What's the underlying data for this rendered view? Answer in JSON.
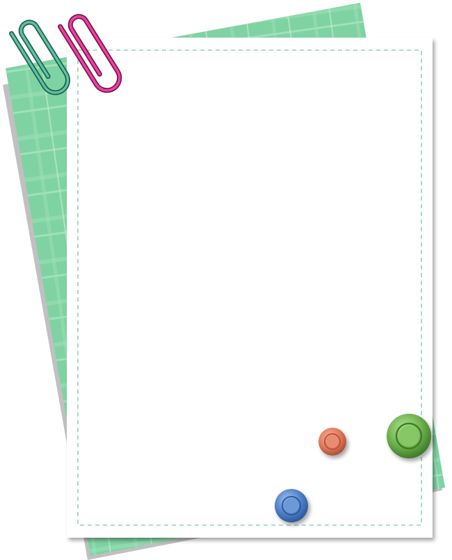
{
  "scene": {
    "colors": {
      "background": "#ffffff",
      "green_paper": "#7fd3a2",
      "green_paper_light": "#a6e2bd",
      "paper_shadow": "#9a9a9a",
      "note_paper": "#ffffff",
      "dashed_border": "#8fd3b4",
      "clip_green": "#2f8f74",
      "clip_pink": "#e8158d",
      "pin_orange": "#e27b5f",
      "pin_green": "#6fb24e",
      "pin_blue": "#4f82cc"
    },
    "elements": {
      "paper_clips": [
        "green-paper-clip-icon",
        "pink-paper-clip-icon"
      ],
      "push_pins": [
        "orange-push-pin-icon",
        "green-push-pin-icon",
        "blue-push-pin-icon"
      ]
    }
  }
}
